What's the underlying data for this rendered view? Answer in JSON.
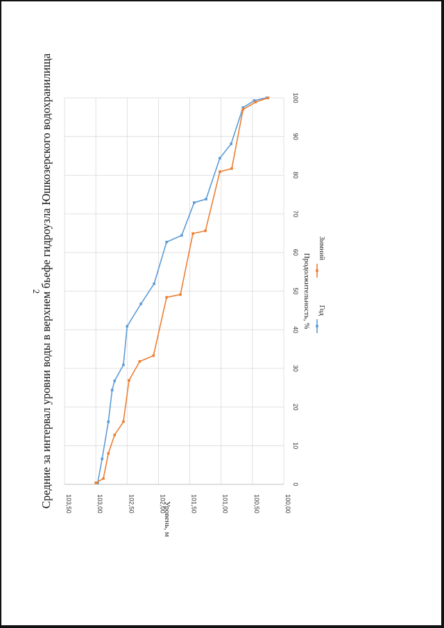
{
  "page": {
    "number": "2"
  },
  "chart_data": {
    "type": "line",
    "title": "Средние за интервал уровни воды в верхнем бьефе гидроузла Юшкозерского водохранилища",
    "xlabel": "Продолжительность, %",
    "ylabel": "Уровень, м",
    "xlim": [
      0,
      100
    ],
    "ylim": [
      100.0,
      103.5
    ],
    "x_ticks": [
      0,
      10,
      20,
      30,
      40,
      50,
      60,
      70,
      80,
      90,
      100
    ],
    "x_tick_labels": [
      "0",
      "10",
      "20",
      "30",
      "40",
      "50",
      "60",
      "70",
      "80",
      "90",
      "100"
    ],
    "y_ticks": [
      103.5,
      103.0,
      102.5,
      102.0,
      101.5,
      101.0,
      100.5,
      100.0
    ],
    "y_tick_labels": [
      "103,50",
      "103,00",
      "102,50",
      "102,00",
      "101,50",
      "101,00",
      "100,50",
      "100,00"
    ],
    "grid": true,
    "legend_position": "bottom",
    "series": [
      {
        "name": "Год",
        "color": "#5b9bd5",
        "x": [
          0.4,
          6.6,
          16.2,
          24.4,
          26.8,
          30.9,
          40.9,
          46.7,
          51.9,
          62.7,
          64.4,
          72.9,
          73.8,
          84.4,
          88.1,
          97.5,
          99.3,
          100
        ],
        "y": [
          102.97,
          102.9,
          102.8,
          102.74,
          102.7,
          102.56,
          102.5,
          102.28,
          102.07,
          101.87,
          101.63,
          101.43,
          101.24,
          101.02,
          100.84,
          100.65,
          100.47,
          100.27
        ]
      },
      {
        "name": "Зимний",
        "color": "#ed7d31",
        "x": [
          0.4,
          1.5,
          8.0,
          12.8,
          16.2,
          26.9,
          31.8,
          33.3,
          48.4,
          49.1,
          64.9,
          65.6,
          80.9,
          81.7,
          97.0,
          98.9,
          100
        ],
        "y": [
          103.0,
          102.88,
          102.8,
          102.7,
          102.56,
          102.47,
          102.3,
          102.08,
          101.87,
          101.65,
          101.45,
          101.25,
          101.02,
          100.83,
          100.65,
          100.45,
          100.25
        ]
      }
    ]
  }
}
